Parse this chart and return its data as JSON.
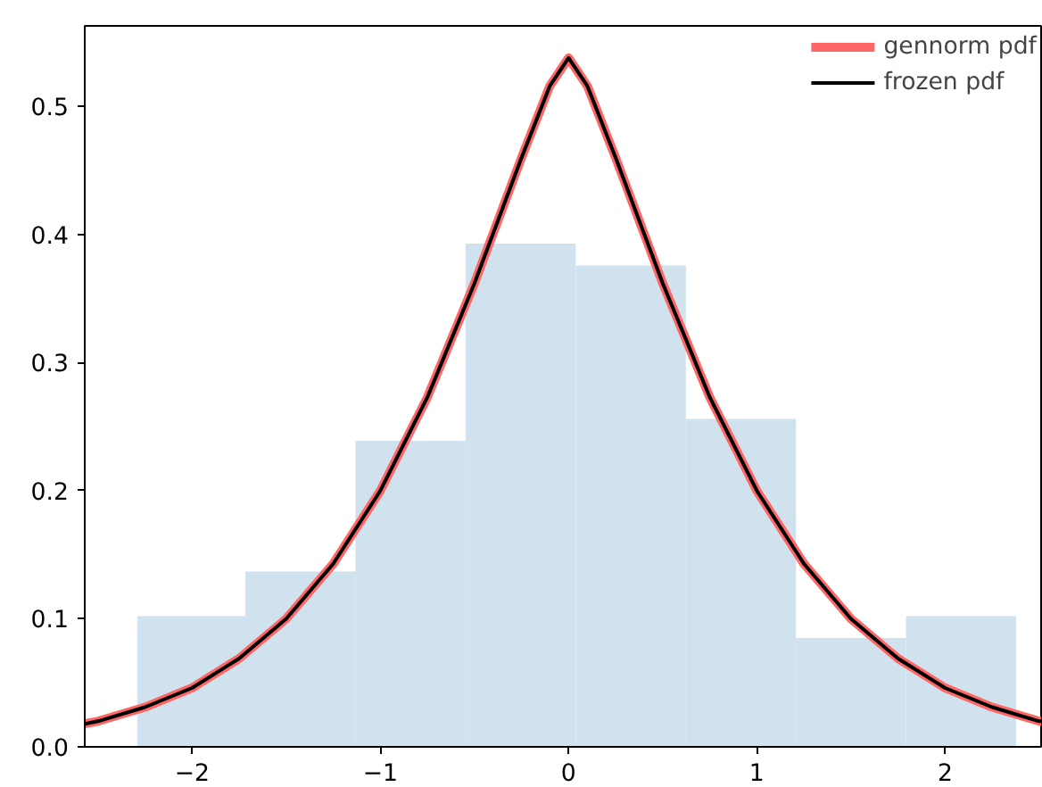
{
  "chart_data": {
    "type": "histogram",
    "bins": [
      -2.29,
      -1.717,
      -1.132,
      -0.547,
      0.038,
      0.623,
      1.208,
      1.792,
      2.377
    ],
    "values": [
      0.102,
      0.137,
      0.239,
      0.393,
      0.376,
      0.256,
      0.085,
      0.102
    ],
    "color": "#d1e2ef",
    "series": [
      {
        "type": "line",
        "name": "gennorm pdf",
        "color": "#ff6666",
        "x": [
          -2.57,
          -2.5,
          -2.25,
          -2.0,
          -1.75,
          -1.5,
          -1.25,
          -1.0,
          -0.75,
          -0.5,
          -0.25,
          -0.1,
          0.0,
          0.1,
          0.25,
          0.5,
          0.75,
          1.0,
          1.25,
          1.5,
          1.75,
          2.0,
          2.25,
          2.5,
          2.51
        ],
        "values": [
          0.018,
          0.02,
          0.031,
          0.046,
          0.069,
          0.1,
          0.143,
          0.2,
          0.273,
          0.362,
          0.46,
          0.516,
          0.538,
          0.516,
          0.46,
          0.362,
          0.273,
          0.2,
          0.143,
          0.1,
          0.069,
          0.046,
          0.031,
          0.02,
          0.02
        ]
      },
      {
        "type": "line",
        "name": "frozen pdf",
        "color": "#000000",
        "x": [
          -2.57,
          -2.5,
          -2.25,
          -2.0,
          -1.75,
          -1.5,
          -1.25,
          -1.0,
          -0.75,
          -0.5,
          -0.25,
          -0.1,
          0.0,
          0.1,
          0.25,
          0.5,
          0.75,
          1.0,
          1.25,
          1.5,
          1.75,
          2.0,
          2.25,
          2.5,
          2.51
        ],
        "values": [
          0.018,
          0.02,
          0.031,
          0.046,
          0.069,
          0.1,
          0.143,
          0.2,
          0.273,
          0.362,
          0.46,
          0.516,
          0.538,
          0.516,
          0.46,
          0.362,
          0.273,
          0.2,
          0.143,
          0.1,
          0.069,
          0.046,
          0.031,
          0.02,
          0.02
        ]
      }
    ],
    "xlim": [
      -2.57,
      2.51
    ],
    "ylim": [
      0,
      0.563
    ],
    "xticks": [
      {
        "value": -2,
        "label": "−2"
      },
      {
        "value": -1,
        "label": "−1"
      },
      {
        "value": 0,
        "label": "0"
      },
      {
        "value": 1,
        "label": "1"
      },
      {
        "value": 2,
        "label": "2"
      }
    ],
    "yticks": [
      {
        "value": 0,
        "label": "0.0"
      },
      {
        "value": 0.1,
        "label": "0.1"
      },
      {
        "value": 0.2,
        "label": "0.2"
      },
      {
        "value": 0.3,
        "label": "0.3"
      },
      {
        "value": 0.4,
        "label": "0.4"
      },
      {
        "value": 0.5,
        "label": "0.5"
      }
    ],
    "grid": false,
    "legend": "top right"
  }
}
